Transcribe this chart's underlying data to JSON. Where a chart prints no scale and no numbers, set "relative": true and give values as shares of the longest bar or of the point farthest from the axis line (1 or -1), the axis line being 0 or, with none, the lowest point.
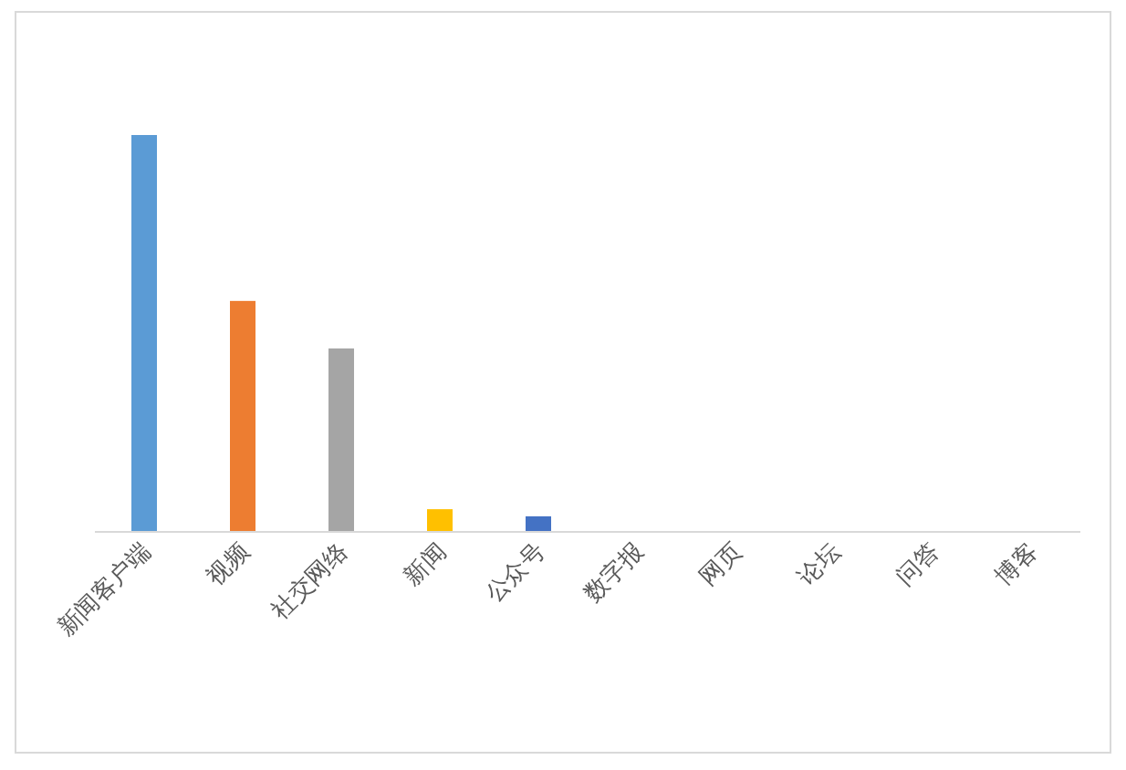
{
  "chart_data": {
    "type": "bar",
    "relative": true,
    "categories": [
      "新闻客户端",
      "视频",
      "社交网络",
      "新闻",
      "公众号",
      "数字报",
      "网页",
      "论坛",
      "问答",
      "博客"
    ],
    "values": [
      1,
      0.581,
      0.461,
      0.055,
      0.037,
      0,
      0,
      0,
      0,
      0
    ],
    "colors": [
      "#5b9bd5",
      "#ed7d31",
      "#a5a5a5",
      "#ffc000",
      "#4472c4",
      "#70ad47",
      "#264478",
      "#9e480e",
      "#636363",
      "#997300"
    ]
  }
}
